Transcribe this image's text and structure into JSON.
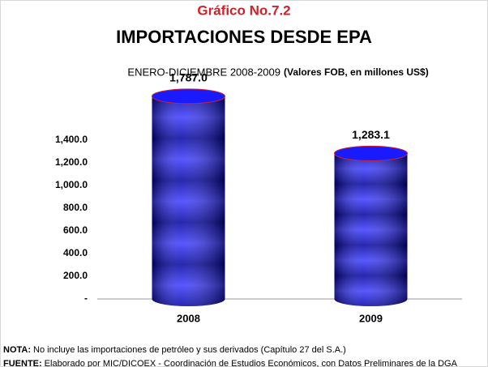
{
  "chart_data": {
    "type": "bar",
    "title": "Gráfico No.7.2",
    "subtitle": "IMPORTACIONES DESDE EPA",
    "period": "ENERO-DICIEMBRE 2008-2009",
    "units": "(Valores FOB, en millones US$)",
    "categories": [
      "2008",
      "2009"
    ],
    "values": [
      1787.0,
      1283.1
    ],
    "value_labels": [
      "1,787.0",
      "1,283.1"
    ],
    "color": "#1a1aff",
    "ylim": [
      0,
      1800
    ],
    "yticks": [
      {
        "value": 0,
        "label": "-"
      },
      {
        "value": 200,
        "label": "200.0"
      },
      {
        "value": 400,
        "label": "400.0"
      },
      {
        "value": 600,
        "label": "600.0"
      },
      {
        "value": 800,
        "label": "800.0"
      },
      {
        "value": 1000,
        "label": "1,000.0"
      },
      {
        "value": 1200,
        "label": "1,200.0"
      },
      {
        "value": 1400,
        "label": "1,400.0"
      }
    ],
    "notes": [
      {
        "label": "NOTA:",
        "text": "No incluye las importaciones de petróleo y sus derivados (Capítulo 27 del S.A.)"
      },
      {
        "label": "FUENTE:",
        "text": "Elaborado por MIC/DICOEX - Coordinación de Estudios Económicos, con Datos Preliminares de la DGA"
      }
    ]
  }
}
